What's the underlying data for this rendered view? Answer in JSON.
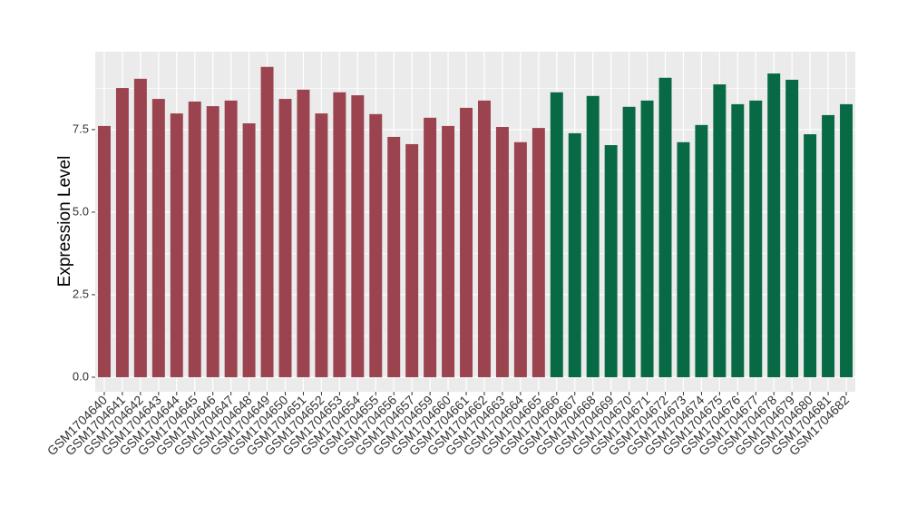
{
  "chart_data": {
    "type": "bar",
    "y_label": "Expression Level",
    "categories": [
      "GSM1704640",
      "GSM1704641",
      "GSM1704642",
      "GSM1704643",
      "GSM1704644",
      "GSM1704645",
      "GSM1704646",
      "GSM1704647",
      "GSM1704648",
      "GSM1704649",
      "GSM1704650",
      "GSM1704651",
      "GSM1704652",
      "GSM1704653",
      "GSM1704654",
      "GSM1704655",
      "GSM1704656",
      "GSM1704657",
      "GSM1704659",
      "GSM1704660",
      "GSM1704661",
      "GSM1704662",
      "GSM1704663",
      "GSM1704664",
      "GSM1704665",
      "GSM1704666",
      "GSM1704667",
      "GSM1704668",
      "GSM1704669",
      "GSM1704670",
      "GSM1704671",
      "GSM1704672",
      "GSM1704673",
      "GSM1704674",
      "GSM1704675",
      "GSM1704676",
      "GSM1704677",
      "GSM1704678",
      "GSM1704679",
      "GSM1704680",
      "GSM1704681",
      "GSM1704682"
    ],
    "values": [
      7.61,
      8.76,
      9.04,
      8.43,
      7.99,
      8.35,
      8.21,
      8.38,
      7.69,
      9.4,
      8.43,
      8.71,
      7.99,
      8.63,
      8.54,
      7.97,
      7.28,
      7.06,
      7.86,
      7.61,
      8.16,
      8.38,
      7.58,
      7.12,
      7.55,
      8.63,
      7.39,
      8.52,
      7.03,
      8.19,
      8.38,
      9.07,
      7.12,
      7.64,
      8.87,
      8.27,
      8.38,
      9.2,
      9.01,
      7.36,
      7.94,
      8.27
    ],
    "colors": [
      "#9b4450",
      "#9b4450",
      "#9b4450",
      "#9b4450",
      "#9b4450",
      "#9b4450",
      "#9b4450",
      "#9b4450",
      "#9b4450",
      "#9b4450",
      "#9b4450",
      "#9b4450",
      "#9b4450",
      "#9b4450",
      "#9b4450",
      "#9b4450",
      "#9b4450",
      "#9b4450",
      "#9b4450",
      "#9b4450",
      "#9b4450",
      "#9b4450",
      "#9b4450",
      "#9b4450",
      "#9b4450",
      "#086a44",
      "#086a44",
      "#086a44",
      "#086a44",
      "#086a44",
      "#086a44",
      "#086a44",
      "#086a44",
      "#086a44",
      "#086a44",
      "#086a44",
      "#086a44",
      "#086a44",
      "#086a44",
      "#086a44",
      "#086a44",
      "#086a44"
    ],
    "ylim": [
      -0.44,
      9.86
    ],
    "yticks": [
      {
        "value": 0,
        "label": "0.0"
      },
      2.5,
      {
        "value": 5,
        "label": "5.0"
      },
      7.5
    ],
    "grid": true
  }
}
